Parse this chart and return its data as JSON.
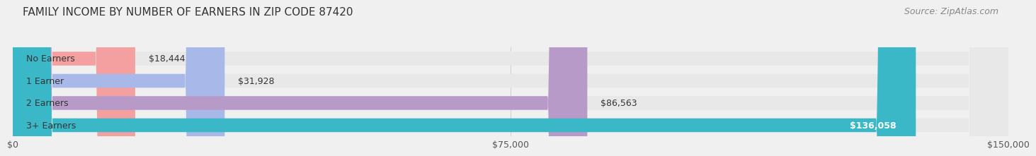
{
  "title": "FAMILY INCOME BY NUMBER OF EARNERS IN ZIP CODE 87420",
  "source": "Source: ZipAtlas.com",
  "categories": [
    "No Earners",
    "1 Earner",
    "2 Earners",
    "3+ Earners"
  ],
  "values": [
    18444,
    31928,
    86563,
    136058
  ],
  "bar_colors": [
    "#f4a0a0",
    "#a8b8e8",
    "#b89ac8",
    "#3ab8c8"
  ],
  "label_colors": [
    "#333333",
    "#333333",
    "#333333",
    "#ffffff"
  ],
  "value_labels": [
    "$18,444",
    "$31,928",
    "$86,563",
    "$136,058"
  ],
  "xlim": [
    0,
    150000
  ],
  "xticks": [
    0,
    75000,
    150000
  ],
  "xtick_labels": [
    "$0",
    "$75,000",
    "$150,000"
  ],
  "background_color": "#f0f0f0",
  "bar_background_color": "#e8e8e8",
  "title_fontsize": 11,
  "source_fontsize": 9,
  "bar_height": 0.62,
  "fig_width": 14.06,
  "fig_height": 2.33
}
